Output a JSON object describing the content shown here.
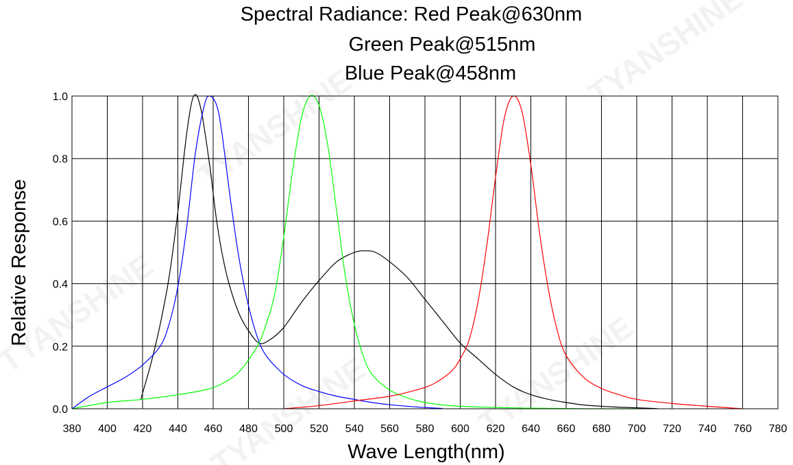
{
  "chart_data": {
    "type": "line",
    "title_lines": [
      "Spectral Radiance: Red Peak@630nm",
      "Green Peak@515nm",
      "Blue Peak@458nm"
    ],
    "xlabel": "Wave  Length(nm)",
    "ylabel": "Relative Response",
    "xlim": [
      380,
      780
    ],
    "ylim": [
      0,
      1.0
    ],
    "x_ticks": [
      "380",
      "400",
      "420",
      "440",
      "460",
      "480",
      "500",
      "520",
      "540",
      "560",
      "580",
      "600",
      "620",
      "640",
      "660",
      "680",
      "700",
      "720",
      "740",
      "760",
      "780"
    ],
    "y_ticks": [
      "0.0",
      "0.2",
      "0.4",
      "0.6",
      "0.8",
      "1.0"
    ],
    "grid": true,
    "series": [
      {
        "color": "#000000",
        "x": [
          419,
          425,
          430,
          435,
          440,
          445,
          449,
          453,
          458,
          462,
          466,
          470,
          475,
          480,
          486,
          492,
          500,
          510,
          520,
          530,
          540,
          546,
          552,
          560,
          570,
          580,
          590,
          600,
          610,
          620,
          630,
          640,
          650,
          660,
          670,
          680,
          690,
          700,
          710,
          712
        ],
        "y": [
          0.03,
          0.15,
          0.27,
          0.42,
          0.63,
          0.88,
          1.0,
          0.96,
          0.78,
          0.6,
          0.47,
          0.38,
          0.3,
          0.25,
          0.21,
          0.22,
          0.26,
          0.34,
          0.41,
          0.47,
          0.5,
          0.505,
          0.5,
          0.47,
          0.42,
          0.35,
          0.28,
          0.21,
          0.16,
          0.11,
          0.07,
          0.045,
          0.03,
          0.02,
          0.012,
          0.008,
          0.005,
          0.003,
          0.001,
          0.0
        ]
      },
      {
        "color": "#0000ff",
        "x": [
          380,
          390,
          400,
          410,
          420,
          430,
          435,
          440,
          445,
          450,
          455,
          458,
          462,
          465,
          470,
          475,
          480,
          485,
          490,
          500,
          510,
          520,
          530,
          540,
          550,
          560,
          570,
          580,
          590
        ],
        "y": [
          0.0,
          0.04,
          0.07,
          0.1,
          0.14,
          0.2,
          0.27,
          0.39,
          0.58,
          0.82,
          0.97,
          1.0,
          0.97,
          0.88,
          0.66,
          0.47,
          0.33,
          0.23,
          0.17,
          0.11,
          0.075,
          0.055,
          0.04,
          0.03,
          0.02,
          0.013,
          0.008,
          0.004,
          0.001
        ]
      },
      {
        "color": "#00ff00",
        "x": [
          380,
          400,
          420,
          440,
          455,
          465,
          475,
          485,
          490,
          495,
          500,
          505,
          510,
          515,
          520,
          525,
          530,
          535,
          540,
          545,
          550,
          560,
          570,
          580,
          590,
          600,
          620,
          640,
          660,
          680,
          700
        ],
        "y": [
          0.0,
          0.02,
          0.03,
          0.045,
          0.06,
          0.08,
          0.12,
          0.2,
          0.27,
          0.37,
          0.55,
          0.76,
          0.93,
          1.0,
          0.97,
          0.84,
          0.63,
          0.42,
          0.27,
          0.17,
          0.11,
          0.06,
          0.035,
          0.02,
          0.012,
          0.008,
          0.004,
          0.002,
          0.001,
          0.0,
          0.0
        ]
      },
      {
        "color": "#ff0000",
        "x": [
          500,
          520,
          540,
          560,
          575,
          585,
          595,
          600,
          605,
          610,
          615,
          620,
          625,
          630,
          635,
          640,
          645,
          650,
          655,
          660,
          670,
          680,
          690,
          700,
          720,
          740,
          760
        ],
        "y": [
          0.0,
          0.01,
          0.025,
          0.04,
          0.06,
          0.08,
          0.12,
          0.16,
          0.22,
          0.34,
          0.52,
          0.74,
          0.93,
          1.0,
          0.95,
          0.78,
          0.56,
          0.38,
          0.25,
          0.17,
          0.1,
          0.065,
          0.045,
          0.03,
          0.017,
          0.008,
          0.0
        ]
      }
    ]
  },
  "watermarks": [
    "TYANSHINE",
    "TYANSHINE",
    "TYANSHINE",
    "TYANSHINE",
    "TYANSHINE"
  ]
}
